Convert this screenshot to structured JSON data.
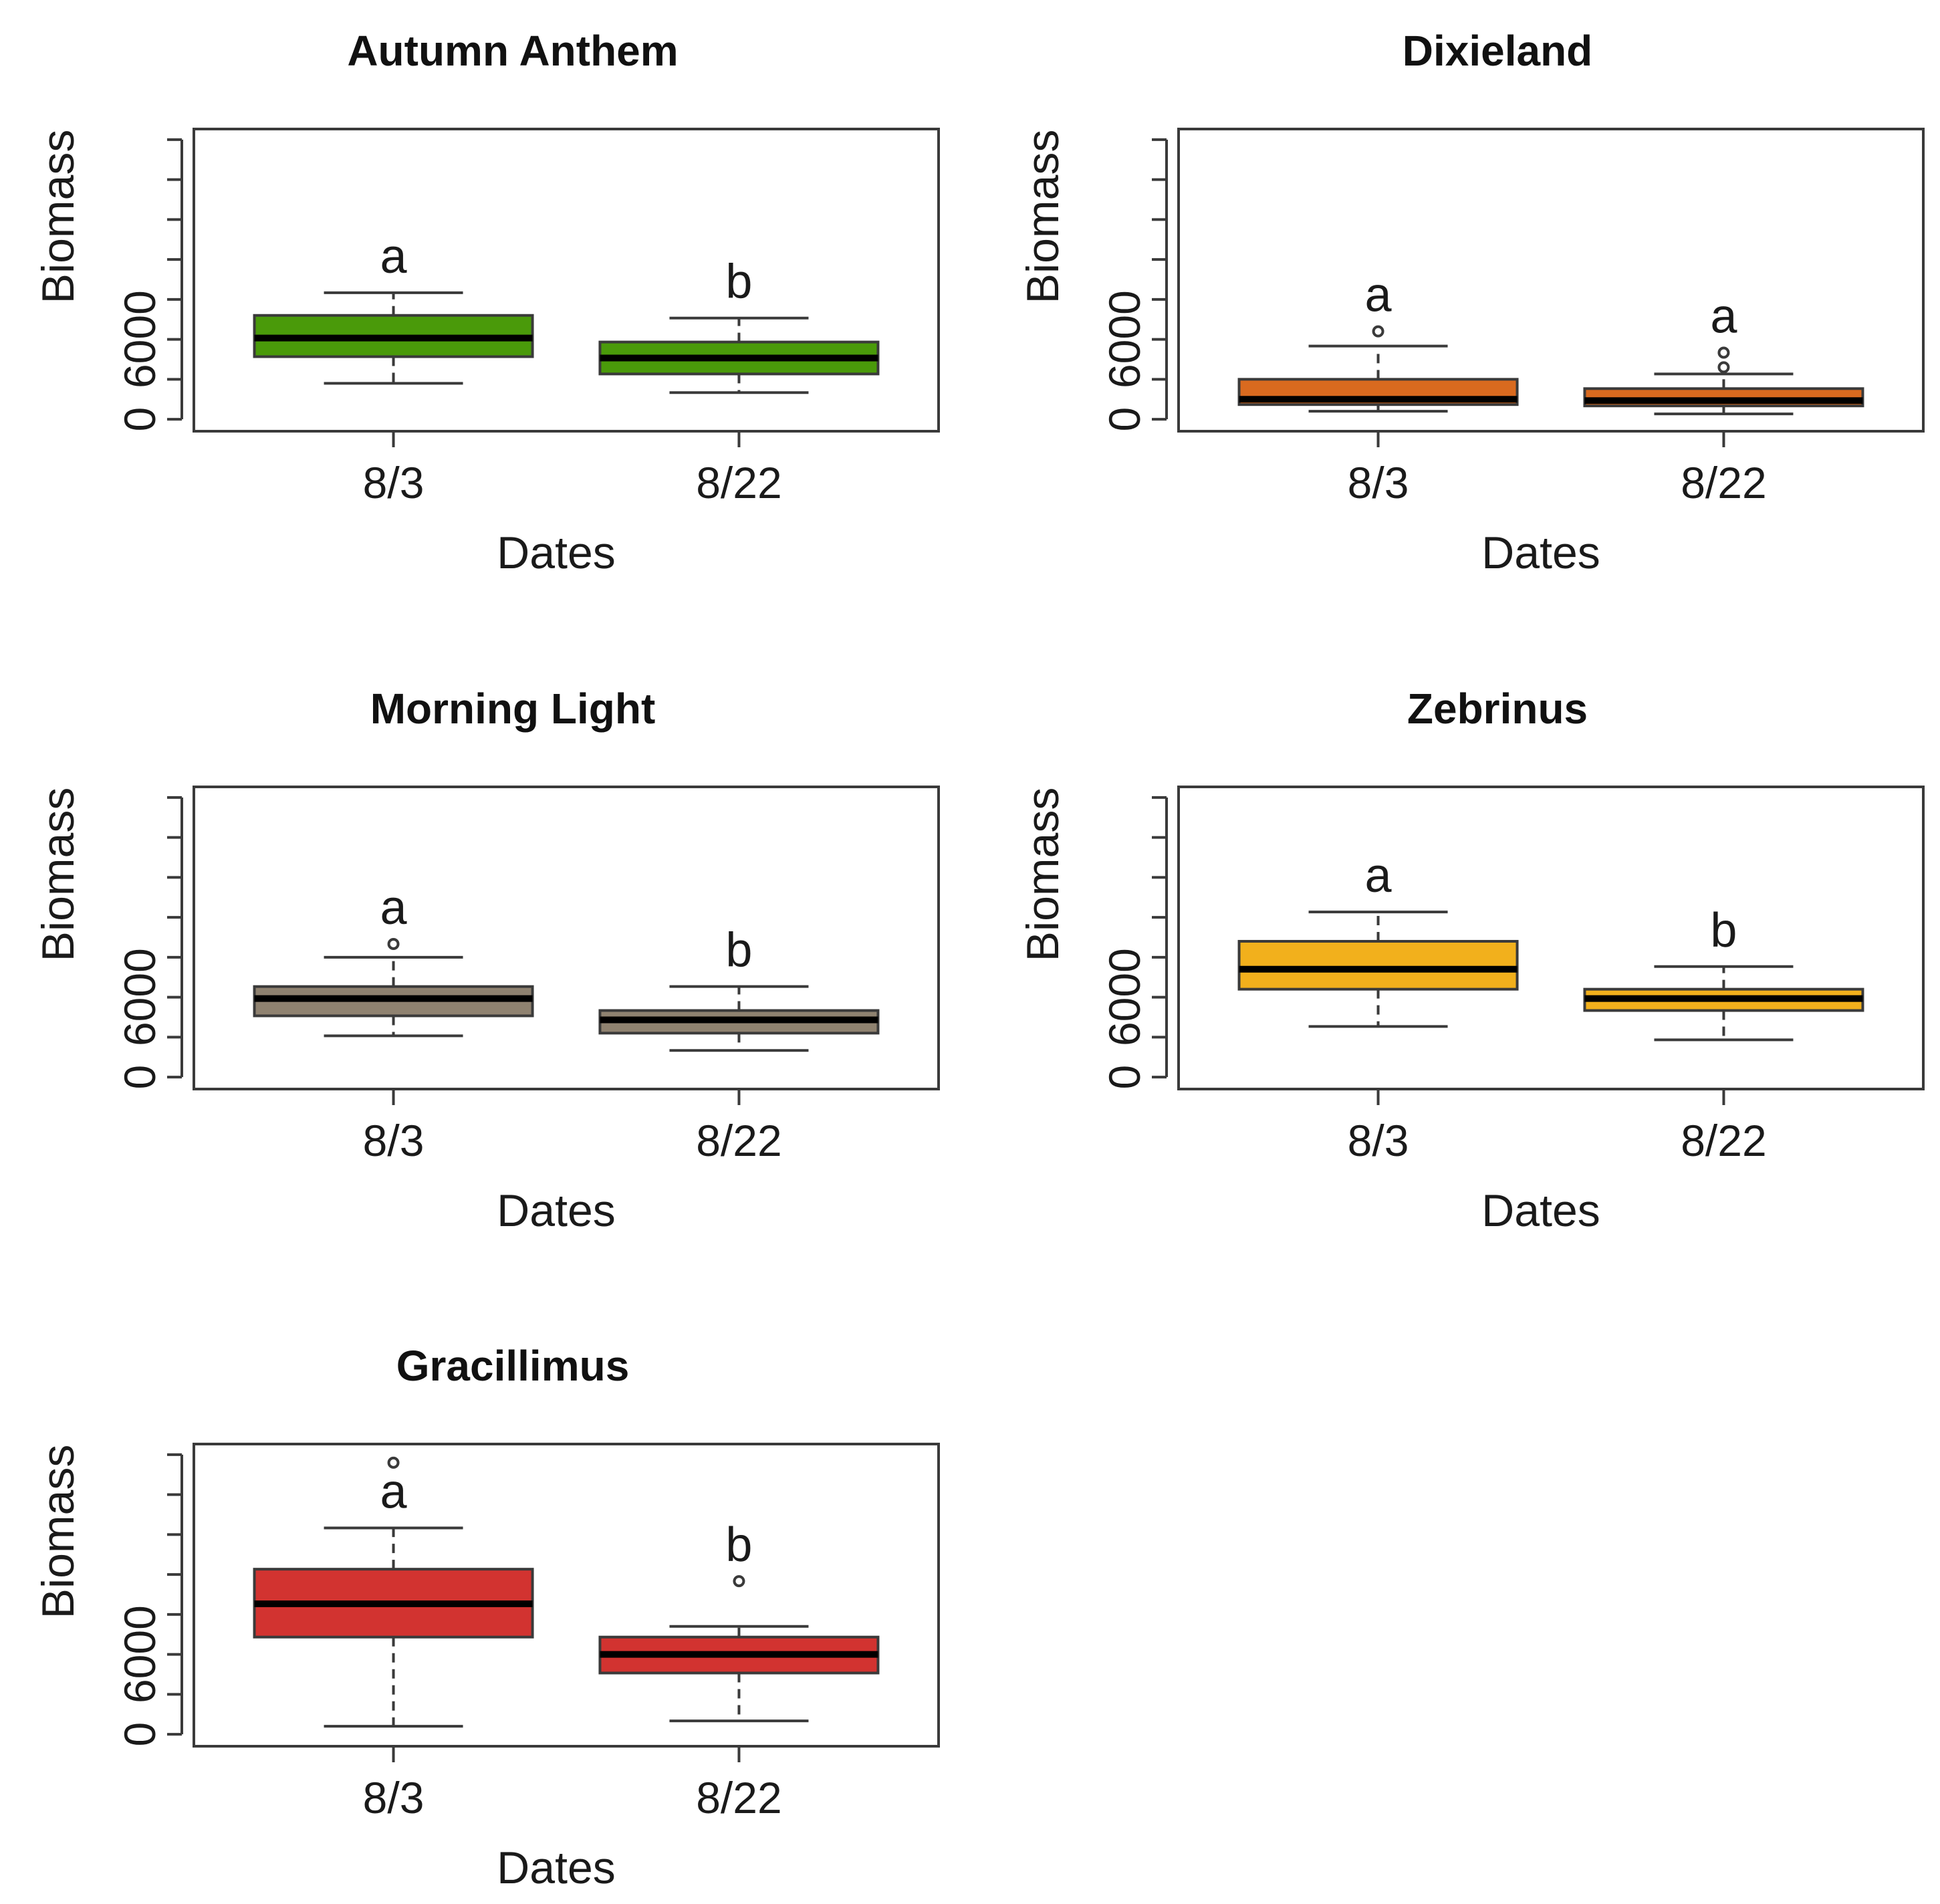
{
  "chart_data": [
    {
      "type": "boxplot",
      "title": "Autumn Anthem",
      "xlabel": "Dates",
      "ylabel": "Biomass",
      "ylim": [
        -900,
        21800
      ],
      "yticks": [
        0,
        3000,
        6000,
        9000,
        12000,
        15000,
        18000,
        21000
      ],
      "ytick_labels": [
        "0",
        "",
        "6000",
        "",
        "",
        "",
        "",
        ""
      ],
      "color": "#4a9a0a",
      "categories": [
        "8/3",
        "8/22"
      ],
      "boxes": [
        {
          "min": 2700,
          "q1": 4700,
          "median": 6100,
          "q3": 7800,
          "max": 9500,
          "outliers": [],
          "letter": "a"
        },
        {
          "min": 2000,
          "q1": 3400,
          "median": 4600,
          "q3": 5800,
          "max": 7600,
          "outliers": [],
          "letter": "b"
        }
      ]
    },
    {
      "type": "boxplot",
      "title": "Dixieland",
      "xlabel": "Dates",
      "ylabel": "Biomass",
      "ylim": [
        -900,
        21800
      ],
      "yticks": [
        0,
        3000,
        6000,
        9000,
        12000,
        15000,
        18000,
        21000
      ],
      "ytick_labels": [
        "0",
        "",
        "6000",
        "",
        "",
        "",
        "",
        ""
      ],
      "color": "#d96a1f",
      "categories": [
        "8/3",
        "8/22"
      ],
      "boxes": [
        {
          "min": 600,
          "q1": 1100,
          "median": 1500,
          "q3": 3000,
          "max": 5500,
          "outliers": [
            6600
          ],
          "letter": "a"
        },
        {
          "min": 400,
          "q1": 1000,
          "median": 1400,
          "q3": 2300,
          "max": 3400,
          "outliers": [
            3900,
            5000
          ],
          "letter": "a"
        }
      ]
    },
    {
      "type": "boxplot",
      "title": "Morning Light",
      "xlabel": "Dates",
      "ylabel": "Biomass",
      "ylim": [
        -900,
        21800
      ],
      "yticks": [
        0,
        3000,
        6000,
        9000,
        12000,
        15000,
        18000,
        21000
      ],
      "ytick_labels": [
        "0",
        "",
        "6000",
        "",
        "",
        "",
        "",
        ""
      ],
      "color": "#8f8270",
      "categories": [
        "8/3",
        "8/22"
      ],
      "boxes": [
        {
          "min": 3100,
          "q1": 4600,
          "median": 5900,
          "q3": 6800,
          "max": 9000,
          "outliers": [
            10000
          ],
          "letter": "a"
        },
        {
          "min": 2000,
          "q1": 3300,
          "median": 4300,
          "q3": 5000,
          "max": 6800,
          "outliers": [],
          "letter": "b"
        }
      ]
    },
    {
      "type": "boxplot",
      "title": "Zebrinus",
      "xlabel": "Dates",
      "ylabel": "Biomass",
      "ylim": [
        -900,
        21800
      ],
      "yticks": [
        0,
        3000,
        6000,
        9000,
        12000,
        15000,
        18000,
        21000
      ],
      "ytick_labels": [
        "0",
        "",
        "6000",
        "",
        "",
        "",
        "",
        ""
      ],
      "color": "#f2b01c",
      "categories": [
        "8/3",
        "8/22"
      ],
      "boxes": [
        {
          "min": 3800,
          "q1": 6600,
          "median": 8100,
          "q3": 10200,
          "max": 12400,
          "outliers": [],
          "letter": "a"
        },
        {
          "min": 2800,
          "q1": 5000,
          "median": 5900,
          "q3": 6600,
          "max": 8300,
          "outliers": [],
          "letter": "b"
        }
      ]
    },
    {
      "type": "boxplot",
      "title": "Gracillimus",
      "xlabel": "Dates",
      "ylabel": "Biomass",
      "ylim": [
        -900,
        21800
      ],
      "yticks": [
        0,
        3000,
        6000,
        9000,
        12000,
        15000,
        18000,
        21000
      ],
      "ytick_labels": [
        "0",
        "",
        "6000",
        "",
        "",
        "",
        "",
        ""
      ],
      "color": "#d23330",
      "categories": [
        "8/3",
        "8/22"
      ],
      "boxes": [
        {
          "min": 600,
          "q1": 7300,
          "median": 9800,
          "q3": 12400,
          "max": 15500,
          "outliers": [
            20400
          ],
          "letter": "a"
        },
        {
          "min": 1000,
          "q1": 4600,
          "median": 6000,
          "q3": 7300,
          "max": 8100,
          "outliers": [
            11500
          ],
          "letter": "b"
        }
      ]
    }
  ]
}
